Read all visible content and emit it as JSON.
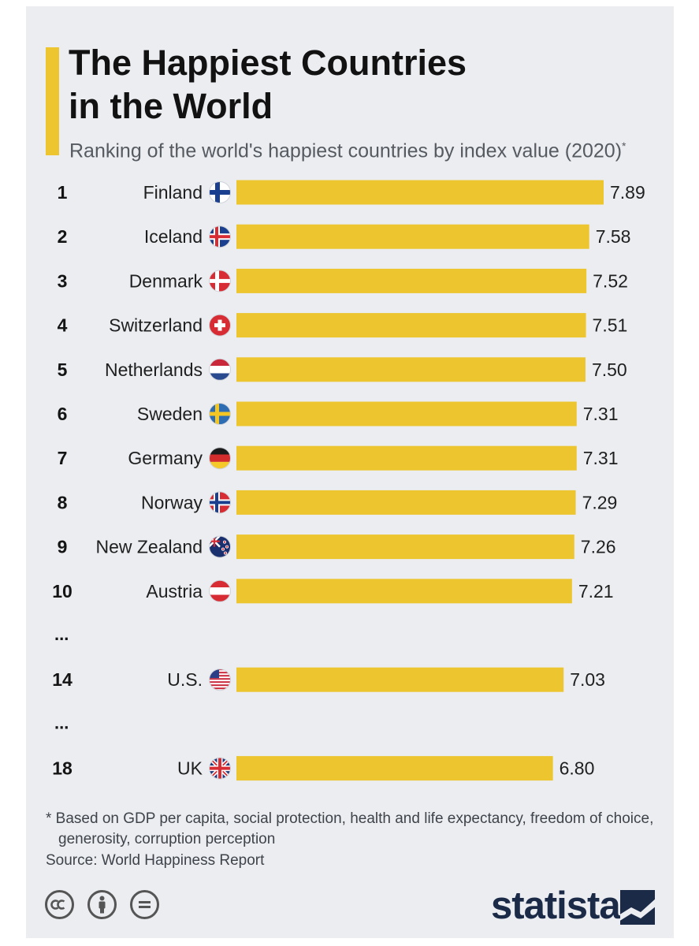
{
  "header": {
    "title": "The Happiest Countries\nin the World",
    "subtitle": "Ranking of the world's happiest countries by index value (2020)",
    "subtitle_mark": "*"
  },
  "chart_data": {
    "type": "bar",
    "orientation": "horizontal",
    "bar_color": "#ecc52f",
    "categories": [
      "Finland",
      "Iceland",
      "Denmark",
      "Switzerland",
      "Netherlands",
      "Sweden",
      "Germany",
      "Norway",
      "New Zealand",
      "Austria",
      "U.S.",
      "UK"
    ],
    "ranks": [
      "1",
      "2",
      "3",
      "4",
      "5",
      "6",
      "7",
      "8",
      "9",
      "10",
      "14",
      "18"
    ],
    "values": [
      7.89,
      7.58,
      7.52,
      7.51,
      7.5,
      7.31,
      7.31,
      7.29,
      7.26,
      7.21,
      7.03,
      6.8
    ],
    "value_labels": [
      "7.89",
      "7.58",
      "7.52",
      "7.51",
      "7.50",
      "7.31",
      "7.31",
      "7.29",
      "7.26",
      "7.21",
      "7.03",
      "6.80"
    ],
    "gap_marker": "...",
    "gaps_before": [
      "14",
      "18"
    ],
    "flag_icons": [
      "finland-flag-icon",
      "iceland-flag-icon",
      "denmark-flag-icon",
      "switzerland-flag-icon",
      "netherlands-flag-icon",
      "sweden-flag-icon",
      "germany-flag-icon",
      "norway-flag-icon",
      "new-zealand-flag-icon",
      "austria-flag-icon",
      "us-flag-icon",
      "uk-flag-icon"
    ],
    "title": "The Happiest Countries in the World",
    "xlabel": "",
    "ylabel": "",
    "xlim": [
      0,
      7.89
    ],
    "grid": false,
    "legend": "none"
  },
  "footer": {
    "footnote": "* Based on GDP per capita, social protection, health and life expectancy, freedom of choice, generosity, corruption perception",
    "source": "Source: World Happiness Report",
    "brand": "statista",
    "license_icons": [
      "cc-icon",
      "by-icon",
      "nd-icon"
    ]
  }
}
